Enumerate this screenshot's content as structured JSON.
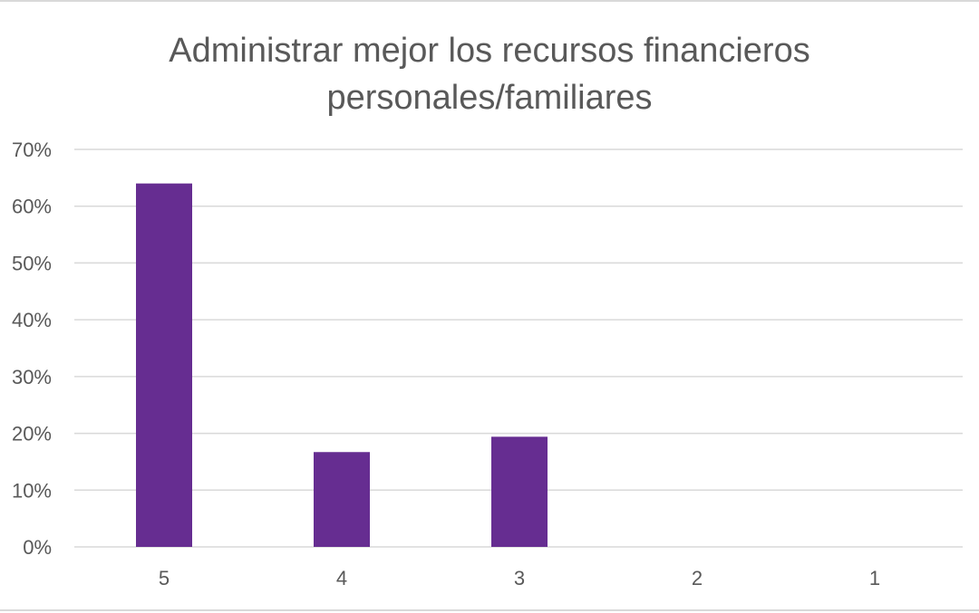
{
  "chart_data": {
    "type": "bar",
    "title_line1": "Administrar mejor los recursos financieros",
    "title_line2": "personales/familiares",
    "categories": [
      "5",
      "4",
      "3",
      "2",
      "1"
    ],
    "values": [
      0.64,
      0.167,
      0.194,
      0,
      0
    ],
    "ylim": [
      0,
      0.7
    ],
    "yticks": [
      "0%",
      "10%",
      "20%",
      "30%",
      "40%",
      "50%",
      "60%",
      "70%"
    ],
    "xlabel": "",
    "ylabel": "",
    "grid": true,
    "legend": "none",
    "bar_color": "#662d91",
    "grid_color": "#d9d9d9",
    "text_color": "#595959"
  }
}
